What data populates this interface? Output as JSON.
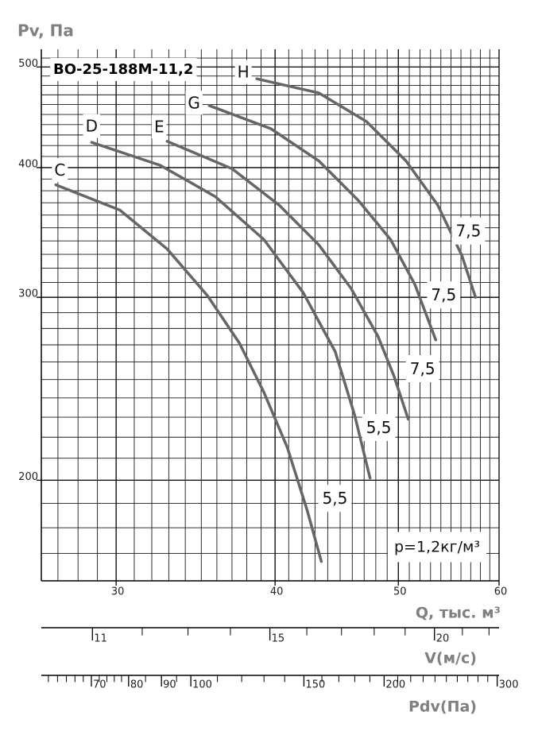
{
  "chart_data": {
    "type": "line",
    "title": "ВО-25-188М-11,2",
    "ylabel": "Pv, Па",
    "xlabel": "Q, тыс. м³",
    "annotation": "p=1,2кг/м³",
    "xscale": "log",
    "yscale": "log",
    "xlim": [
      26.2,
      60
    ],
    "ylim": [
      160,
      520
    ],
    "xticks": [
      30,
      40,
      50,
      60
    ],
    "yticks": [
      200,
      300,
      400,
      500
    ],
    "xgrid": [
      27,
      28,
      29,
      31,
      32,
      33,
      34,
      35,
      36,
      37,
      38,
      39,
      41,
      42,
      43,
      44,
      45,
      46,
      47,
      48,
      49,
      51,
      52,
      53,
      54,
      55,
      56,
      57,
      58,
      59
    ],
    "ygrid": [
      170,
      180,
      190,
      210,
      220,
      230,
      240,
      250,
      260,
      270,
      280,
      290,
      310,
      320,
      330,
      340,
      350,
      360,
      370,
      380,
      390,
      410,
      420,
      430,
      440,
      450,
      460,
      470,
      480,
      490,
      510
    ],
    "series": [
      {
        "name": "C",
        "power": "5,5",
        "color": "#666666",
        "x": [
          26.9,
          30.2,
          32.9,
          35.4,
          37.5,
          39.2,
          40.9,
          42.4,
          43.5
        ],
        "values": [
          385,
          364,
          334,
          301,
          271,
          243,
          215,
          187,
          167
        ]
      },
      {
        "name": "D",
        "power": "5,5",
        "color": "#666666",
        "x": [
          28.7,
          32.5,
          35.9,
          39.2,
          42.1,
          44.6,
          46.2,
          47.5
        ],
        "values": [
          423,
          402,
          375,
          341,
          303,
          266,
          231,
          201
        ]
      },
      {
        "name": "E",
        "power": "7,5",
        "color": "#666666",
        "x": [
          32.9,
          37.0,
          40.3,
          43.3,
          45.9,
          48.2,
          49.6,
          50.9
        ],
        "values": [
          424,
          399,
          368,
          337,
          306,
          275,
          252,
          229
        ]
      },
      {
        "name": "G",
        "power": "7,5",
        "color": "#666666",
        "x": [
          35.5,
          39.7,
          43.3,
          46.5,
          49.3,
          51.5,
          53.5
        ],
        "values": [
          459,
          436,
          406,
          372,
          341,
          309,
          273
        ]
      },
      {
        "name": "H",
        "power": "7,5",
        "color": "#666666",
        "x": [
          38.7,
          43.3,
          47.2,
          50.7,
          53.7,
          56.1,
          57.5
        ],
        "values": [
          487,
          472,
          443,
          406,
          368,
          329,
          300
        ]
      }
    ],
    "v_axis": {
      "label": "V(м/с)",
      "scale": "log",
      "lim": [
        10.06,
        22.39
      ],
      "ticks": [
        11,
        15,
        20
      ],
      "minor_ticks": [
        12,
        13,
        14,
        16,
        17,
        18,
        19,
        21,
        22
      ]
    },
    "pdv_axis": {
      "label": "Pdv(Па)",
      "scale": "log",
      "lim": [
        58.5,
        302
      ],
      "ticks": [
        70,
        80,
        90,
        100,
        150,
        200,
        300
      ],
      "minor_ticks": [
        60,
        62,
        64,
        66,
        68,
        72,
        74,
        76,
        78,
        85,
        95,
        110,
        120,
        130,
        140,
        160,
        170,
        180,
        190,
        210,
        220,
        230,
        240,
        250,
        260,
        270,
        280,
        290
      ]
    }
  }
}
